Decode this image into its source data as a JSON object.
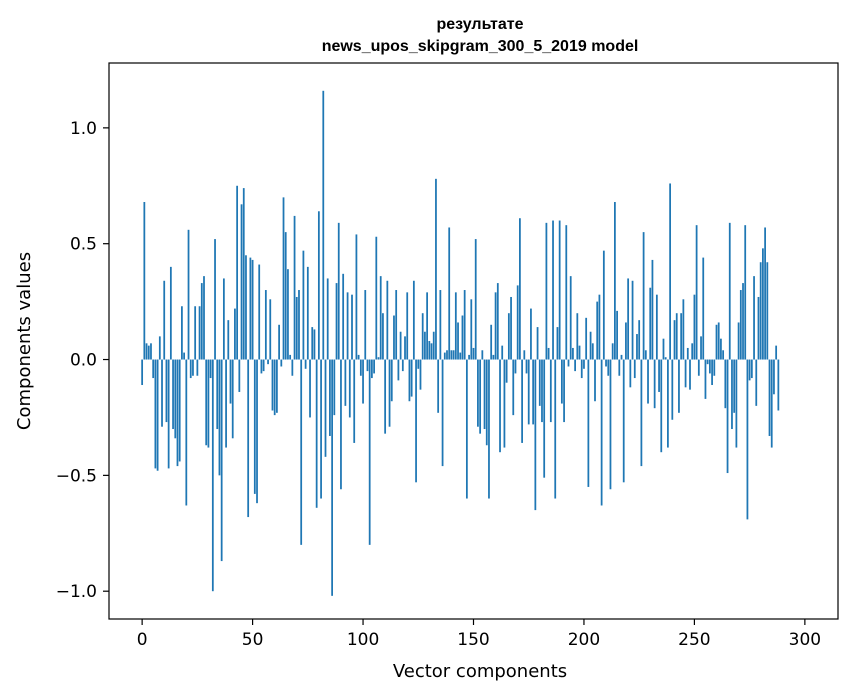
{
  "chart_data": {
    "type": "bar",
    "title": "результате",
    "subtitle": "news_upos_skipgram_300_5_2019 model",
    "xlabel": "Vector components",
    "ylabel": "Components values",
    "xlim": [
      -15,
      315
    ],
    "ylim": [
      -1.12,
      1.28
    ],
    "xticks": [
      0,
      50,
      100,
      150,
      200,
      250,
      300
    ],
    "xtick_labels": [
      "0",
      "50",
      "100",
      "150",
      "200",
      "250",
      "300"
    ],
    "yticks": [
      -1.0,
      -0.5,
      0.0,
      0.5,
      1.0
    ],
    "ytick_labels": [
      "−1.0",
      "−0.5",
      "0.0",
      "0.5",
      "1.0"
    ],
    "grid": false,
    "bar_color": "#1f77b4",
    "x_start": 0,
    "values": [
      -0.11,
      0.68,
      0.07,
      0.06,
      0.07,
      -0.08,
      -0.47,
      -0.48,
      0.1,
      -0.29,
      0.34,
      -0.27,
      -0.47,
      0.4,
      -0.3,
      -0.34,
      -0.46,
      -0.44,
      0.23,
      0.03,
      -0.63,
      0.56,
      -0.08,
      -0.07,
      0.23,
      -0.07,
      0.23,
      0.33,
      0.36,
      -0.37,
      -0.38,
      -0.08,
      -1.0,
      0.52,
      -0.3,
      -0.5,
      -0.87,
      0.35,
      -0.38,
      0.17,
      -0.19,
      -0.34,
      0.22,
      0.75,
      -0.14,
      0.67,
      0.74,
      0.45,
      -0.68,
      0.44,
      0.43,
      -0.58,
      -0.62,
      0.41,
      -0.06,
      -0.05,
      0.3,
      -0.02,
      0.26,
      -0.22,
      -0.24,
      -0.23,
      0.15,
      -0.03,
      0.7,
      0.55,
      0.39,
      0.02,
      -0.07,
      0.62,
      0.27,
      0.3,
      -0.8,
      0.47,
      -0.04,
      0.4,
      -0.25,
      0.14,
      0.13,
      -0.64,
      0.64,
      -0.6,
      1.16,
      -0.42,
      0.35,
      -0.33,
      -1.02,
      -0.24,
      0.33,
      0.59,
      -0.56,
      0.37,
      -0.2,
      0.29,
      -0.25,
      0.28,
      -0.36,
      0.54,
      0.02,
      -0.07,
      -0.19,
      0.3,
      -0.05,
      -0.8,
      -0.08,
      -0.06,
      0.53,
      0.01,
      0.36,
      0.2,
      -0.32,
      0.34,
      -0.29,
      -0.18,
      0.19,
      0.3,
      -0.09,
      0.12,
      -0.05,
      0.1,
      0.29,
      -0.18,
      -0.16,
      0.34,
      -0.53,
      -0.04,
      -0.13,
      0.2,
      0.12,
      0.29,
      0.08,
      0.07,
      0.12,
      0.78,
      -0.23,
      0.3,
      -0.46,
      0.03,
      0.04,
      0.57,
      0.04,
      0.04,
      0.29,
      0.16,
      0.03,
      0.19,
      0.3,
      -0.6,
      0.02,
      0.26,
      0.05,
      0.52,
      -0.29,
      -0.32,
      0.04,
      -0.3,
      -0.37,
      -0.6,
      0.15,
      0.02,
      0.29,
      0.33,
      -0.4,
      0.06,
      -0.38,
      -0.1,
      0.2,
      0.27,
      -0.24,
      -0.06,
      0.32,
      0.61,
      -0.36,
      0.04,
      -0.06,
      -0.28,
      0.22,
      -0.28,
      -0.65,
      0.14,
      -0.2,
      -0.27,
      -0.51,
      0.59,
      0.05,
      -0.27,
      0.6,
      -0.6,
      0.14,
      0.6,
      -0.19,
      -0.27,
      0.58,
      -0.03,
      0.36,
      0.05,
      -0.05,
      0.2,
      0.06,
      -0.08,
      -0.04,
      0.18,
      -0.55,
      0.12,
      0.07,
      -0.18,
      0.25,
      0.28,
      -0.63,
      0.47,
      -0.03,
      -0.07,
      -0.56,
      0.07,
      0.68,
      0.21,
      -0.07,
      0.02,
      -0.53,
      0.16,
      0.35,
      -0.12,
      0.34,
      -0.08,
      0.11,
      0.17,
      -0.46,
      0.55,
      0.04,
      -0.19,
      0.31,
      0.43,
      -0.21,
      0.28,
      -0.14,
      -0.4,
      0.09,
      0.01,
      -0.38,
      0.76,
      -0.26,
      0.17,
      0.2,
      -0.23,
      0.2,
      0.26,
      -0.12,
      0.05,
      -0.13,
      0.07,
      0.28,
      0.58,
      -0.07,
      0.1,
      0.44,
      -0.17,
      -0.02,
      -0.06,
      -0.11,
      -0.07,
      0.15,
      0.16,
      0.09,
      0.04,
      -0.21,
      -0.49,
      0.59,
      -0.3,
      -0.23,
      -0.38,
      0.16,
      0.3,
      0.33,
      0.58,
      -0.69,
      -0.09,
      -0.08,
      0.36,
      -0.2,
      0.27,
      0.42,
      0.48,
      0.57,
      0.42,
      -0.33,
      -0.38,
      -0.15,
      0.06,
      -0.22
    ]
  }
}
